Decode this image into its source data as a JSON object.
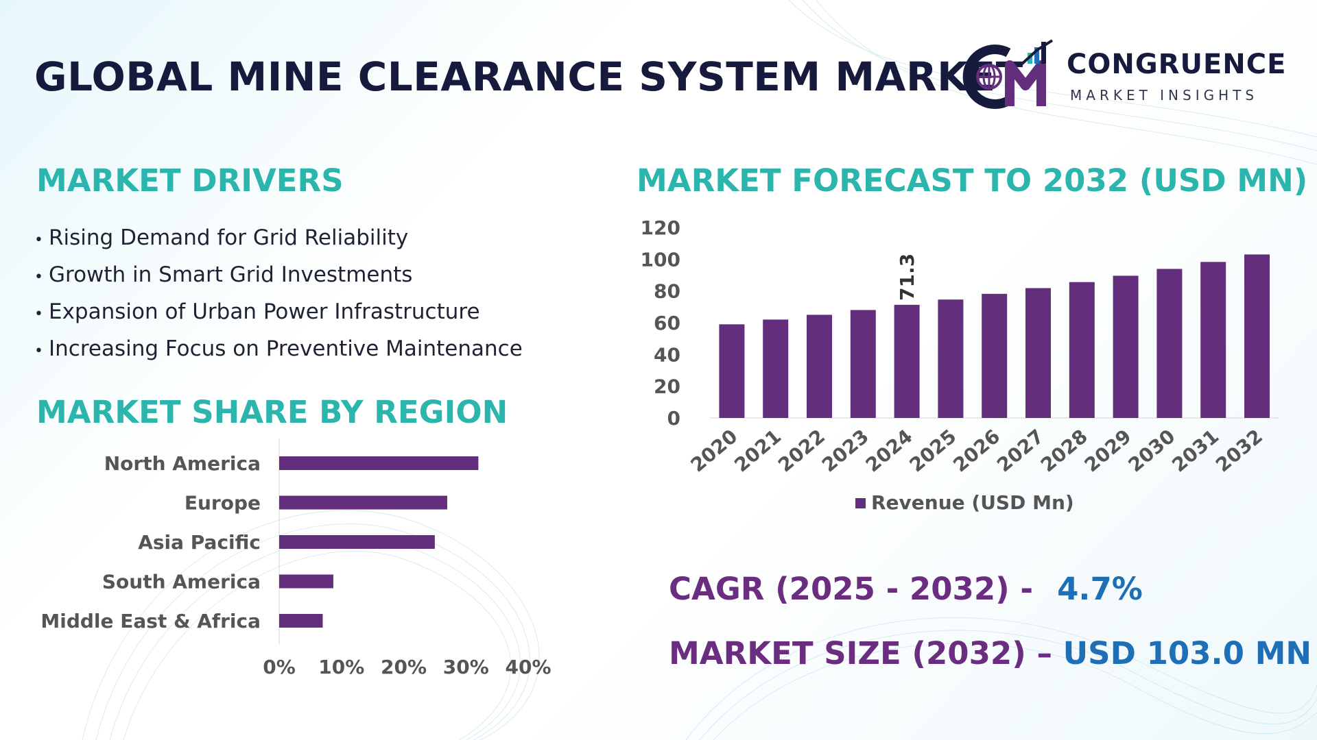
{
  "header": {
    "title": "GLOBAL MINE CLEARANCE SYSTEM MARKET",
    "logo_name": "CONGRUENCE",
    "logo_tagline": "MARKET INSIGHTS"
  },
  "drivers": {
    "title": "MARKET DRIVERS",
    "items": [
      "Rising Demand for Grid Reliability",
      "Growth in Smart Grid Investments",
      "Expansion of Urban Power Infrastructure",
      "Increasing Focus on Preventive Maintenance"
    ]
  },
  "region": {
    "title": "MARKET SHARE BY REGION"
  },
  "forecast": {
    "title": "MARKET FORECAST TO 2032 (USD MN)"
  },
  "stats": {
    "cagr_label": "CAGR (2025 - 2032) -",
    "cagr_value": "4.7%",
    "size_label": "MARKET SIZE (2032) –",
    "size_value": "USD 103.0 MN"
  },
  "colors": {
    "bar": "#632e7b",
    "accent_teal": "#2bb5ad",
    "accent_blue": "#1f6fb7",
    "stat_label": "#6a2d80",
    "title_dark": "#161a3d"
  },
  "chart_data": [
    {
      "type": "bar",
      "orientation": "horizontal",
      "categories": [
        "North America",
        "Europe",
        "Asia Pacific",
        "South America",
        "Middle East & Africa"
      ],
      "values": [
        32,
        27,
        25,
        8.7,
        7
      ],
      "xlim": [
        0,
        40
      ],
      "ticks": [
        0,
        10,
        20,
        30,
        40
      ],
      "tick_labels": [
        "0%",
        "10%",
        "20%",
        "30%",
        "40%"
      ],
      "grid": false
    },
    {
      "type": "bar",
      "categories": [
        "2020",
        "2021",
        "2022",
        "2023",
        "2024",
        "2025",
        "2026",
        "2027",
        "2028",
        "2029",
        "2030",
        "2031",
        "2032"
      ],
      "series": [
        {
          "name": "Revenue (USD Mn)",
          "values": [
            59,
            62,
            65,
            68,
            71.3,
            74.6,
            78.2,
            81.8,
            85.6,
            89.6,
            93.9,
            98.3,
            103.0
          ]
        }
      ],
      "ylim": [
        0,
        120
      ],
      "yticks": [
        0,
        20,
        40,
        60,
        80,
        100,
        120
      ],
      "data_labels": [
        {
          "category": "2024",
          "text": "71.3"
        }
      ],
      "legend": "bottom",
      "grid": false
    }
  ]
}
